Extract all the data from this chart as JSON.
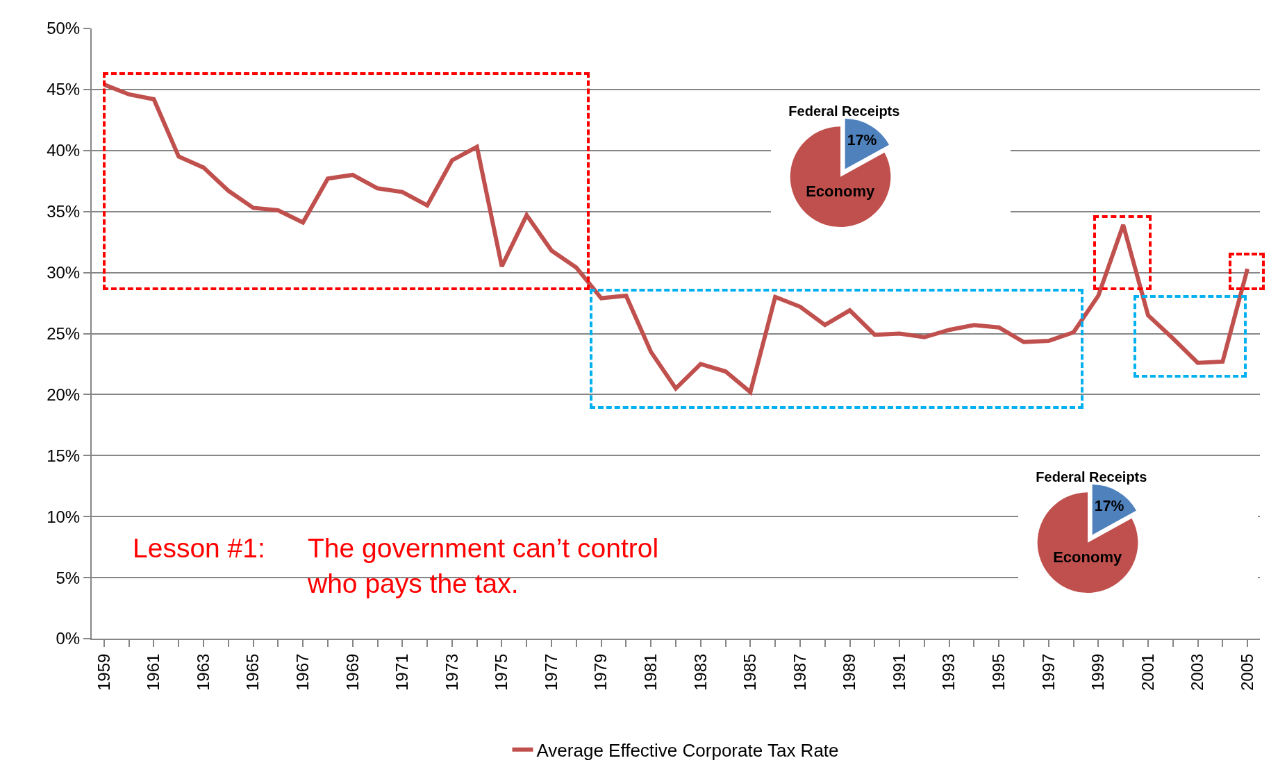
{
  "chart_data": [
    {
      "type": "line",
      "x": [
        1959,
        1960,
        1961,
        1962,
        1963,
        1964,
        1965,
        1966,
        1967,
        1968,
        1969,
        1970,
        1971,
        1972,
        1973,
        1974,
        1975,
        1976,
        1977,
        1978,
        1979,
        1980,
        1981,
        1982,
        1983,
        1984,
        1985,
        1986,
        1987,
        1988,
        1989,
        1990,
        1991,
        1992,
        1993,
        1994,
        1995,
        1996,
        1997,
        1998,
        1999,
        2000,
        2001,
        2002,
        2003,
        2004,
        2005
      ],
      "series": [
        {
          "name": "Average Effective Corporate Tax Rate",
          "color": "#c0504d",
          "values": [
            45.4,
            44.6,
            44.2,
            39.5,
            38.6,
            36.7,
            35.3,
            35.1,
            34.1,
            37.7,
            38.0,
            36.9,
            36.6,
            35.5,
            39.2,
            40.3,
            30.5,
            34.7,
            31.8,
            30.4,
            27.9,
            28.1,
            23.5,
            20.5,
            22.5,
            21.9,
            20.2,
            28.0,
            27.2,
            25.7,
            26.9,
            24.9,
            25.0,
            24.7,
            25.3,
            25.7,
            25.5,
            24.3,
            24.4,
            25.1,
            28.1,
            33.9,
            26.5,
            24.6,
            22.6,
            22.7,
            30.3
          ]
        }
      ],
      "xlim": [
        1958.5,
        2005.5
      ],
      "xticks": [
        {
          "value": 1959,
          "label": "1959"
        },
        {
          "value": 1960,
          "label": null
        },
        {
          "value": 1961,
          "label": "1961"
        },
        {
          "value": 1962,
          "label": null
        },
        {
          "value": 1963,
          "label": "1963"
        },
        {
          "value": 1964,
          "label": null
        },
        {
          "value": 1965,
          "label": "1965"
        },
        {
          "value": 1966,
          "label": null
        },
        {
          "value": 1967,
          "label": "1967"
        },
        {
          "value": 1968,
          "label": null
        },
        {
          "value": 1969,
          "label": "1969"
        },
        {
          "value": 1970,
          "label": null
        },
        {
          "value": 1971,
          "label": "1971"
        },
        {
          "value": 1972,
          "label": null
        },
        {
          "value": 1973,
          "label": "1973"
        },
        {
          "value": 1974,
          "label": null
        },
        {
          "value": 1975,
          "label": "1975"
        },
        {
          "value": 1976,
          "label": null
        },
        {
          "value": 1977,
          "label": "1977"
        },
        {
          "value": 1978,
          "label": null
        },
        {
          "value": 1979,
          "label": "1979"
        },
        {
          "value": 1980,
          "label": null
        },
        {
          "value": 1981,
          "label": "1981"
        },
        {
          "value": 1982,
          "label": null
        },
        {
          "value": 1983,
          "label": "1983"
        },
        {
          "value": 1984,
          "label": null
        },
        {
          "value": 1985,
          "label": "1985"
        },
        {
          "value": 1986,
          "label": null
        },
        {
          "value": 1987,
          "label": "1987"
        },
        {
          "value": 1988,
          "label": null
        },
        {
          "value": 1989,
          "label": "1989"
        },
        {
          "value": 1990,
          "label": null
        },
        {
          "value": 1991,
          "label": "1991"
        },
        {
          "value": 1992,
          "label": null
        },
        {
          "value": 1993,
          "label": "1993"
        },
        {
          "value": 1994,
          "label": null
        },
        {
          "value": 1995,
          "label": "1995"
        },
        {
          "value": 1996,
          "label": null
        },
        {
          "value": 1997,
          "label": "1997"
        },
        {
          "value": 1998,
          "label": null
        },
        {
          "value": 1999,
          "label": "1999"
        },
        {
          "value": 2000,
          "label": null
        },
        {
          "value": 2001,
          "label": "2001"
        },
        {
          "value": 2002,
          "label": null
        },
        {
          "value": 2003,
          "label": "2003"
        },
        {
          "value": 2004,
          "label": null
        },
        {
          "value": 2005,
          "label": "2005"
        }
      ],
      "ylim": [
        0,
        50
      ],
      "yticks": [
        {
          "value": 0,
          "label": "0%"
        },
        {
          "value": 5,
          "label": "5%"
        },
        {
          "value": 10,
          "label": "10%"
        },
        {
          "value": 15,
          "label": "15%"
        },
        {
          "value": 20,
          "label": "20%"
        },
        {
          "value": 25,
          "label": "25%"
        },
        {
          "value": 30,
          "label": "30%"
        },
        {
          "value": 35,
          "label": "35%"
        },
        {
          "value": 40,
          "label": "40%"
        },
        {
          "value": 45,
          "label": "45%"
        },
        {
          "value": 50,
          "label": "50%"
        }
      ],
      "grid": "y",
      "legend": "bottom",
      "marker": "none",
      "line_style": "solid",
      "annotations": [
        "Lesson #1:",
        "The government can’t control\nwho pays the tax."
      ]
    },
    {
      "type": "pie",
      "categories": [
        "Federal Receipts",
        "Economy"
      ],
      "values": [
        17,
        83
      ],
      "colors": [
        "#4f81bd",
        "#c0504d"
      ],
      "value_labels": [
        "17%",
        null
      ]
    },
    {
      "type": "pie",
      "categories": [
        "Federal Receipts",
        "Economy"
      ],
      "values": [
        17,
        83
      ],
      "colors": [
        "#4f81bd",
        "#c0504d"
      ],
      "value_labels": [
        "17%",
        null
      ]
    }
  ]
}
